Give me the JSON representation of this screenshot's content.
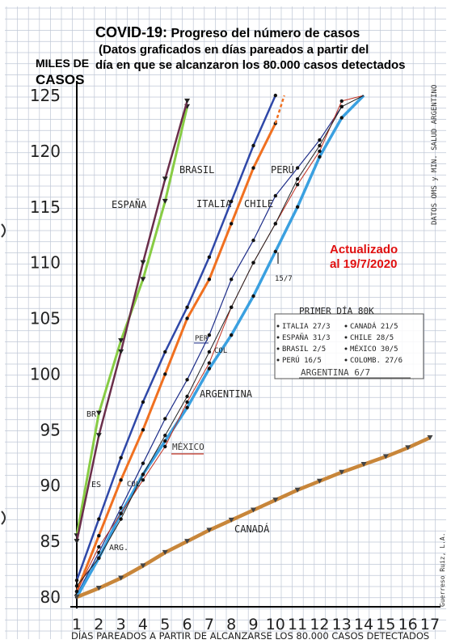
{
  "title": {
    "line1_a": "COVID-19:",
    "line1_b": " Progreso del número de casos",
    "line2": "(Datos graficados en días pareados a partir del",
    "line3": "día en que se alcanzaron los 80.000 casos detectados"
  },
  "ylabel_line1": "MILES DE",
  "ylabel_line2": "CASOS",
  "updated_line1": "Actualizado",
  "updated_line2": "al 19/7/2020",
  "side_note": "DATOS OMS y MIN. SALUD ARGENTINO",
  "signature": "Guerreso Ruiz, L.A.",
  "colors": {
    "brasil": "#88cc44",
    "espana": "#6a2e4a",
    "italia": "#2f48a8",
    "chile": "#f07020",
    "peru": "#1c2c88",
    "argentina": "#3aa0e0",
    "mexico": "#c03020",
    "colombia": "#222222",
    "canada": "#c8863a",
    "grid": "#bfc7d6"
  },
  "chart_data": {
    "type": "line",
    "xlabel": "DÍAS PAREADOS A PARTIR DE ALCANZARSE LOS 80.000 CASOS DETECTADOS",
    "ylabel": "MILES DE CASOS",
    "x_ticks": [
      1,
      2,
      3,
      4,
      5,
      6,
      7,
      8,
      9,
      10,
      11,
      12,
      13,
      14,
      15,
      16,
      17
    ],
    "y_ticks": [
      80,
      85,
      90,
      95,
      100,
      105,
      110,
      115,
      120,
      125
    ],
    "xlim": [
      1,
      17
    ],
    "ylim": [
      80,
      125
    ],
    "grid": true,
    "series": [
      {
        "name": "BRASIL",
        "key": "brasil",
        "x": [
          1,
          2,
          3,
          4,
          5,
          6
        ],
        "y": [
          85.5,
          96.5,
          103,
          108.5,
          115.5,
          124
        ]
      },
      {
        "name": "ESPAÑA",
        "key": "espana",
        "x": [
          1,
          2,
          3,
          4,
          5,
          6
        ],
        "y": [
          85,
          94.5,
          102,
          110,
          117.5,
          124.5
        ]
      },
      {
        "name": "ITALIA",
        "key": "italia",
        "x": [
          1,
          2,
          3,
          4,
          5,
          6,
          7,
          8,
          9,
          10
        ],
        "y": [
          81.5,
          87,
          92.5,
          97.5,
          102,
          106,
          110.5,
          115.5,
          120.5,
          125
        ]
      },
      {
        "name": "CHILE",
        "key": "chile",
        "x": [
          1,
          2,
          3,
          4,
          5,
          6,
          7,
          8,
          9,
          10
        ],
        "y": [
          80.5,
          85.5,
          90.5,
          95,
          100,
          105,
          108.5,
          113.5,
          118.5,
          122.5
        ]
      },
      {
        "name": "PERÚ",
        "key": "peru",
        "x": [
          1,
          2,
          3,
          4,
          5,
          6,
          7,
          8,
          9,
          10,
          11,
          12,
          13
        ],
        "y": [
          80.2,
          84,
          88,
          92,
          96,
          99.5,
          103.5,
          108.5,
          112,
          116,
          118.5,
          121,
          124
        ]
      },
      {
        "name": "ARGENTINA",
        "key": "argentina",
        "x": [
          1,
          2,
          3,
          4,
          5,
          6,
          7,
          8,
          9,
          10,
          11,
          12,
          13,
          14
        ],
        "y": [
          80,
          83.5,
          87.5,
          91,
          94,
          97,
          100.5,
          103.5,
          107,
          111,
          115,
          119.5,
          123,
          127
        ]
      },
      {
        "name": "MÉXICO",
        "key": "mexico",
        "x": [
          1,
          2,
          3,
          4,
          5,
          6,
          7,
          8,
          9,
          10,
          11,
          12,
          13,
          14
        ],
        "y": [
          80.5,
          84.5,
          87.5,
          90.5,
          93.5,
          97.5,
          101,
          106,
          110,
          113.5,
          117,
          120,
          124.5,
          127
        ]
      },
      {
        "name": "COLOMBIA",
        "key": "colombia",
        "x": [
          1,
          2,
          3,
          4,
          5,
          6,
          7,
          8,
          9,
          10,
          11,
          12,
          13,
          14
        ],
        "y": [
          81,
          83.5,
          87,
          91,
          94.5,
          98,
          102,
          106,
          110,
          113.5,
          117.5,
          120.5,
          124,
          127
        ]
      },
      {
        "name": "CANADÁ",
        "key": "canada",
        "x": [
          1,
          2,
          3,
          4,
          5,
          6,
          7,
          8,
          9,
          10,
          11,
          12,
          13,
          14,
          15,
          16,
          17
        ],
        "y": [
          80,
          80.8,
          81.7,
          82.8,
          84,
          85,
          86,
          86.9,
          87.8,
          88.7,
          89.6,
          90.4,
          91.2,
          91.9,
          92.6,
          93.4,
          94.3
        ]
      }
    ],
    "labels": {
      "brasil": "BRASIL",
      "espana": "ESPAÑA",
      "italia": "ITALIA",
      "chile": "CHILE",
      "peru": "PERÚ",
      "argentina": "ARGENTINA",
      "mexico": "MÉXICO",
      "canada": "CANADÁ",
      "br_short": "BR",
      "es_short": "ES",
      "arg_short": "ARG.",
      "col_short": "COL",
      "per_short": "PER",
      "col_short2": "COL",
      "date_mark": "15/7"
    },
    "legend": {
      "title": "PRIMER DÍA 80K",
      "entries": [
        [
          "ITALIA 27/3",
          "CANADÁ 21/5"
        ],
        [
          "ESPAÑA 31/3",
          "CHILE 28/5"
        ],
        [
          "BRASIL 2/5",
          "MÉXICO 30/5"
        ],
        [
          "PERÚ 16/5",
          "COLOMB. 27/6"
        ]
      ],
      "last": "ARGENTINA 6/7",
      "placement": "center-right"
    }
  }
}
